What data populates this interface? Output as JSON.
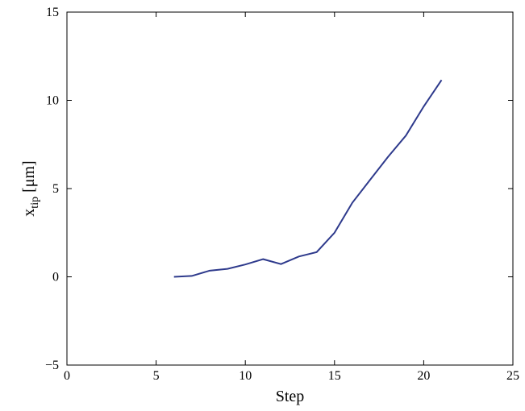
{
  "chart_data": {
    "type": "line",
    "title": "",
    "xlabel": "Step",
    "ylabel": {
      "base": "x",
      "sub": "tip",
      "unit": " [μm]"
    },
    "xlim": [
      0,
      25
    ],
    "ylim": [
      -5,
      15
    ],
    "xticks": [
      0,
      5,
      10,
      15,
      20,
      25
    ],
    "yticks": [
      -5,
      0,
      5,
      10,
      15
    ],
    "xtick_labels": [
      "0",
      "5",
      "10",
      "15",
      "20",
      "25"
    ],
    "ytick_labels": [
      "−5",
      "0",
      "5",
      "10",
      "15"
    ],
    "grid": false,
    "line_color": "#2e3a8c",
    "series": [
      {
        "x": [
          6,
          7,
          8,
          9,
          10,
          11,
          12,
          13,
          14,
          15,
          16,
          17,
          18,
          19,
          20,
          21
        ],
        "y": [
          0.0,
          0.05,
          0.35,
          0.45,
          0.7,
          1.0,
          0.72,
          1.15,
          1.4,
          2.5,
          4.2,
          5.5,
          6.8,
          8.0,
          9.65,
          11.15
        ]
      }
    ]
  }
}
